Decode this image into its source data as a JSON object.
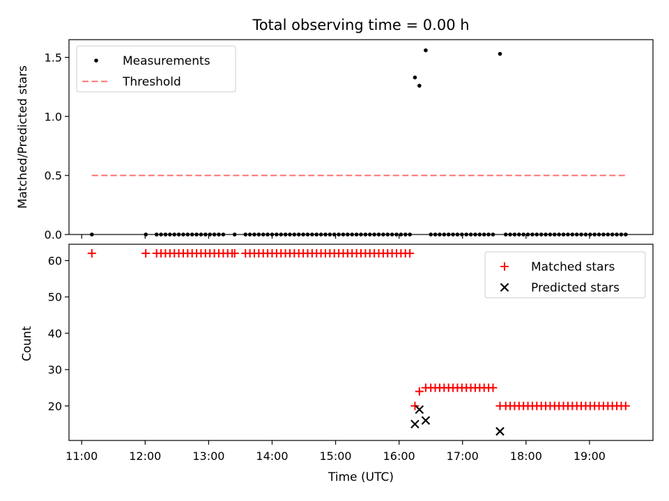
{
  "chart_data": [
    {
      "type": "scatter",
      "title": "Total observing time = 0.00 h",
      "ylabel": "Matched/Predicted stars",
      "xlabel": "",
      "xlim": [
        10.8,
        20.0
      ],
      "ylim": [
        0.0,
        1.65
      ],
      "yticks": [
        0.0,
        0.5,
        1.0,
        1.5
      ],
      "ytick_labels": [
        "0.0",
        "0.5",
        "1.0",
        "1.5"
      ],
      "legend": {
        "location": "top-left",
        "entries": [
          "Measurements",
          "Threshold"
        ]
      },
      "series": [
        {
          "name": "Measurements",
          "style": "dot",
          "color": "#000000",
          "points": [
            [
              11.16,
              0.0
            ],
            [
              12.01,
              0.0
            ],
            [
              12.18,
              0.0
            ],
            [
              12.25,
              0.0
            ],
            [
              12.32,
              0.0
            ],
            [
              12.39,
              0.0
            ],
            [
              12.46,
              0.0
            ],
            [
              12.53,
              0.0
            ],
            [
              12.6,
              0.0
            ],
            [
              12.67,
              0.0
            ],
            [
              12.74,
              0.0
            ],
            [
              12.81,
              0.0
            ],
            [
              12.88,
              0.0
            ],
            [
              12.95,
              0.0
            ],
            [
              13.02,
              0.0
            ],
            [
              13.09,
              0.0
            ],
            [
              13.16,
              0.0
            ],
            [
              13.23,
              0.0
            ],
            [
              13.41,
              0.0
            ],
            [
              13.58,
              0.0
            ],
            [
              13.65,
              0.0
            ],
            [
              13.72,
              0.0
            ],
            [
              13.79,
              0.0
            ],
            [
              13.86,
              0.0
            ],
            [
              13.93,
              0.0
            ],
            [
              14.0,
              0.0
            ],
            [
              14.07,
              0.0
            ],
            [
              14.14,
              0.0
            ],
            [
              14.21,
              0.0
            ],
            [
              14.28,
              0.0
            ],
            [
              14.35,
              0.0
            ],
            [
              14.42,
              0.0
            ],
            [
              14.49,
              0.0
            ],
            [
              14.56,
              0.0
            ],
            [
              14.63,
              0.0
            ],
            [
              14.7,
              0.0
            ],
            [
              14.77,
              0.0
            ],
            [
              14.84,
              0.0
            ],
            [
              14.91,
              0.0
            ],
            [
              14.98,
              0.0
            ],
            [
              15.05,
              0.0
            ],
            [
              15.12,
              0.0
            ],
            [
              15.19,
              0.0
            ],
            [
              15.26,
              0.0
            ],
            [
              15.33,
              0.0
            ],
            [
              15.4,
              0.0
            ],
            [
              15.47,
              0.0
            ],
            [
              15.54,
              0.0
            ],
            [
              15.61,
              0.0
            ],
            [
              15.68,
              0.0
            ],
            [
              15.75,
              0.0
            ],
            [
              15.82,
              0.0
            ],
            [
              15.89,
              0.0
            ],
            [
              15.96,
              0.0
            ],
            [
              16.03,
              0.0
            ],
            [
              16.1,
              0.0
            ],
            [
              16.17,
              0.0
            ],
            [
              16.25,
              1.33
            ],
            [
              16.32,
              1.26
            ],
            [
              16.42,
              1.56
            ],
            [
              16.5,
              0.0
            ],
            [
              16.57,
              0.0
            ],
            [
              16.64,
              0.0
            ],
            [
              16.71,
              0.0
            ],
            [
              16.78,
              0.0
            ],
            [
              16.85,
              0.0
            ],
            [
              16.92,
              0.0
            ],
            [
              16.99,
              0.0
            ],
            [
              17.06,
              0.0
            ],
            [
              17.13,
              0.0
            ],
            [
              17.2,
              0.0
            ],
            [
              17.27,
              0.0
            ],
            [
              17.34,
              0.0
            ],
            [
              17.41,
              0.0
            ],
            [
              17.48,
              0.0
            ],
            [
              17.59,
              1.53
            ],
            [
              17.68,
              0.0
            ],
            [
              17.75,
              0.0
            ],
            [
              17.82,
              0.0
            ],
            [
              17.89,
              0.0
            ],
            [
              17.96,
              0.0
            ],
            [
              18.03,
              0.0
            ],
            [
              18.1,
              0.0
            ],
            [
              18.17,
              0.0
            ],
            [
              18.24,
              0.0
            ],
            [
              18.31,
              0.0
            ],
            [
              18.38,
              0.0
            ],
            [
              18.45,
              0.0
            ],
            [
              18.52,
              0.0
            ],
            [
              18.59,
              0.0
            ],
            [
              18.66,
              0.0
            ],
            [
              18.73,
              0.0
            ],
            [
              18.8,
              0.0
            ],
            [
              18.87,
              0.0
            ],
            [
              18.94,
              0.0
            ],
            [
              19.01,
              0.0
            ],
            [
              19.08,
              0.0
            ],
            [
              19.15,
              0.0
            ],
            [
              19.22,
              0.0
            ],
            [
              19.29,
              0.0
            ],
            [
              19.36,
              0.0
            ],
            [
              19.43,
              0.0
            ],
            [
              19.5,
              0.0
            ],
            [
              19.57,
              0.0
            ]
          ]
        },
        {
          "name": "Threshold",
          "style": "dashed-line",
          "color": "#ff7f7f",
          "points": [
            [
              11.16,
              0.5
            ],
            [
              19.57,
              0.5
            ]
          ]
        }
      ]
    },
    {
      "type": "scatter",
      "title": "",
      "xlabel": "Time (UTC)",
      "ylabel": "Count",
      "xlim": [
        10.8,
        20.0
      ],
      "ylim": [
        10.5,
        64.5
      ],
      "xticks": [
        11,
        12,
        13,
        14,
        15,
        16,
        17,
        18,
        19
      ],
      "xtick_labels": [
        "11:00",
        "12:00",
        "13:00",
        "14:00",
        "15:00",
        "16:00",
        "17:00",
        "18:00",
        "19:00"
      ],
      "yticks": [
        20,
        30,
        40,
        50,
        60
      ],
      "ytick_labels": [
        "20",
        "30",
        "40",
        "50",
        "60"
      ],
      "legend": {
        "location": "top-right",
        "entries": [
          "Matched stars",
          "Predicted stars"
        ]
      },
      "series": [
        {
          "name": "Matched stars",
          "style": "plus",
          "color": "#ff0000",
          "points": [
            [
              11.16,
              62
            ],
            [
              12.01,
              62
            ],
            [
              12.18,
              62
            ],
            [
              12.25,
              62
            ],
            [
              12.32,
              62
            ],
            [
              12.39,
              62
            ],
            [
              12.46,
              62
            ],
            [
              12.53,
              62
            ],
            [
              12.6,
              62
            ],
            [
              12.67,
              62
            ],
            [
              12.74,
              62
            ],
            [
              12.81,
              62
            ],
            [
              12.88,
              62
            ],
            [
              12.95,
              62
            ],
            [
              13.02,
              62
            ],
            [
              13.09,
              62
            ],
            [
              13.16,
              62
            ],
            [
              13.23,
              62
            ],
            [
              13.3,
              62
            ],
            [
              13.37,
              62
            ],
            [
              13.41,
              62
            ],
            [
              13.58,
              62
            ],
            [
              13.65,
              62
            ],
            [
              13.72,
              62
            ],
            [
              13.79,
              62
            ],
            [
              13.86,
              62
            ],
            [
              13.93,
              62
            ],
            [
              14.0,
              62
            ],
            [
              14.07,
              62
            ],
            [
              14.14,
              62
            ],
            [
              14.21,
              62
            ],
            [
              14.28,
              62
            ],
            [
              14.35,
              62
            ],
            [
              14.42,
              62
            ],
            [
              14.49,
              62
            ],
            [
              14.56,
              62
            ],
            [
              14.63,
              62
            ],
            [
              14.7,
              62
            ],
            [
              14.77,
              62
            ],
            [
              14.84,
              62
            ],
            [
              14.91,
              62
            ],
            [
              14.98,
              62
            ],
            [
              15.05,
              62
            ],
            [
              15.12,
              62
            ],
            [
              15.19,
              62
            ],
            [
              15.26,
              62
            ],
            [
              15.33,
              62
            ],
            [
              15.4,
              62
            ],
            [
              15.47,
              62
            ],
            [
              15.54,
              62
            ],
            [
              15.61,
              62
            ],
            [
              15.68,
              62
            ],
            [
              15.75,
              62
            ],
            [
              15.82,
              62
            ],
            [
              15.89,
              62
            ],
            [
              15.96,
              62
            ],
            [
              16.03,
              62
            ],
            [
              16.1,
              62
            ],
            [
              16.17,
              62
            ],
            [
              16.25,
              20
            ],
            [
              16.32,
              24
            ],
            [
              16.42,
              25
            ],
            [
              16.5,
              25
            ],
            [
              16.57,
              25
            ],
            [
              16.64,
              25
            ],
            [
              16.71,
              25
            ],
            [
              16.78,
              25
            ],
            [
              16.85,
              25
            ],
            [
              16.92,
              25
            ],
            [
              16.99,
              25
            ],
            [
              17.06,
              25
            ],
            [
              17.13,
              25
            ],
            [
              17.2,
              25
            ],
            [
              17.27,
              25
            ],
            [
              17.34,
              25
            ],
            [
              17.41,
              25
            ],
            [
              17.48,
              25
            ],
            [
              17.59,
              20
            ],
            [
              17.68,
              20
            ],
            [
              17.75,
              20
            ],
            [
              17.82,
              20
            ],
            [
              17.89,
              20
            ],
            [
              17.96,
              20
            ],
            [
              18.03,
              20
            ],
            [
              18.1,
              20
            ],
            [
              18.17,
              20
            ],
            [
              18.24,
              20
            ],
            [
              18.31,
              20
            ],
            [
              18.38,
              20
            ],
            [
              18.45,
              20
            ],
            [
              18.52,
              20
            ],
            [
              18.59,
              20
            ],
            [
              18.66,
              20
            ],
            [
              18.73,
              20
            ],
            [
              18.8,
              20
            ],
            [
              18.87,
              20
            ],
            [
              18.94,
              20
            ],
            [
              19.01,
              20
            ],
            [
              19.08,
              20
            ],
            [
              19.15,
              20
            ],
            [
              19.22,
              20
            ],
            [
              19.29,
              20
            ],
            [
              19.36,
              20
            ],
            [
              19.43,
              20
            ],
            [
              19.5,
              20
            ],
            [
              19.57,
              20
            ]
          ]
        },
        {
          "name": "Predicted stars",
          "style": "x",
          "color": "#000000",
          "points": [
            [
              16.25,
              15
            ],
            [
              16.32,
              19
            ],
            [
              16.42,
              16
            ],
            [
              17.59,
              13
            ]
          ]
        }
      ]
    }
  ]
}
